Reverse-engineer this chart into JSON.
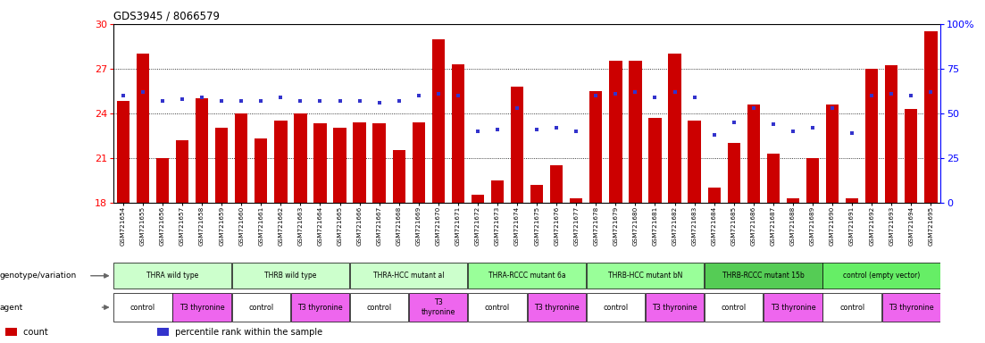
{
  "title": "GDS3945 / 8066579",
  "samples": [
    "GSM721654",
    "GSM721655",
    "GSM721656",
    "GSM721657",
    "GSM721658",
    "GSM721659",
    "GSM721660",
    "GSM721661",
    "GSM721662",
    "GSM721663",
    "GSM721664",
    "GSM721665",
    "GSM721666",
    "GSM721667",
    "GSM721668",
    "GSM721669",
    "GSM721670",
    "GSM721671",
    "GSM721672",
    "GSM721673",
    "GSM721674",
    "GSM721675",
    "GSM721676",
    "GSM721677",
    "GSM721678",
    "GSM721679",
    "GSM721680",
    "GSM721681",
    "GSM721682",
    "GSM721683",
    "GSM721684",
    "GSM721685",
    "GSM721686",
    "GSM721687",
    "GSM721688",
    "GSM721689",
    "GSM721690",
    "GSM721691",
    "GSM721692",
    "GSM721693",
    "GSM721694",
    "GSM721695"
  ],
  "bar_values": [
    24.8,
    28.0,
    21.0,
    22.2,
    25.0,
    23.0,
    24.0,
    22.3,
    23.5,
    24.0,
    23.3,
    23.0,
    23.4,
    23.3,
    21.5,
    23.4,
    29.0,
    27.3,
    18.5,
    19.5,
    25.8,
    19.2,
    20.5,
    18.3,
    25.5,
    27.5,
    27.5,
    23.7,
    28.0,
    23.5,
    19.0,
    22.0,
    24.6,
    21.3,
    18.3,
    21.0,
    24.6,
    18.3,
    27.0,
    27.2,
    24.3,
    29.5
  ],
  "percentile_pct": [
    60,
    62,
    57,
    58,
    59,
    57,
    57,
    57,
    59,
    57,
    57,
    57,
    57,
    56,
    57,
    60,
    61,
    60,
    40,
    41,
    53,
    41,
    42,
    40,
    60,
    61,
    62,
    59,
    62,
    59,
    38,
    45,
    53,
    44,
    40,
    42,
    53,
    39,
    60,
    61,
    60,
    62
  ],
  "ylim_left": [
    18,
    30
  ],
  "ylim_right": [
    0,
    100
  ],
  "yticks_left": [
    18,
    21,
    24,
    27,
    30
  ],
  "yticks_right": [
    0,
    25,
    50,
    75,
    100
  ],
  "ytick_labels_right": [
    "0",
    "25",
    "50",
    "75",
    "100%"
  ],
  "bar_color": "#cc0000",
  "percentile_color": "#3333cc",
  "bg_color": "#ffffff",
  "genotype_groups": [
    {
      "label": "THRA wild type",
      "start": 0,
      "end": 6,
      "color": "#ccffcc"
    },
    {
      "label": "THRB wild type",
      "start": 6,
      "end": 12,
      "color": "#ccffcc"
    },
    {
      "label": "THRA-HCC mutant al",
      "start": 12,
      "end": 18,
      "color": "#ccffcc"
    },
    {
      "label": "THRA-RCCC mutant 6a",
      "start": 18,
      "end": 24,
      "color": "#99ff99"
    },
    {
      "label": "THRB-HCC mutant bN",
      "start": 24,
      "end": 30,
      "color": "#99ff99"
    },
    {
      "label": "THRB-RCCC mutant 15b",
      "start": 30,
      "end": 36,
      "color": "#55cc55"
    },
    {
      "label": "control (empty vector)",
      "start": 36,
      "end": 42,
      "color": "#66ee66"
    }
  ],
  "agent_groups": [
    {
      "label": "control",
      "start": 0,
      "end": 3,
      "color": "#ffffff"
    },
    {
      "label": "T3 thyronine",
      "start": 3,
      "end": 6,
      "color": "#ee66ee"
    },
    {
      "label": "control",
      "start": 6,
      "end": 9,
      "color": "#ffffff"
    },
    {
      "label": "T3 thyronine",
      "start": 9,
      "end": 12,
      "color": "#ee66ee"
    },
    {
      "label": "control",
      "start": 12,
      "end": 15,
      "color": "#ffffff"
    },
    {
      "label": "T3\nthyronine",
      "start": 15,
      "end": 18,
      "color": "#ee66ee"
    },
    {
      "label": "control",
      "start": 18,
      "end": 21,
      "color": "#ffffff"
    },
    {
      "label": "T3 thyronine",
      "start": 21,
      "end": 24,
      "color": "#ee66ee"
    },
    {
      "label": "control",
      "start": 24,
      "end": 27,
      "color": "#ffffff"
    },
    {
      "label": "T3 thyronine",
      "start": 27,
      "end": 30,
      "color": "#ee66ee"
    },
    {
      "label": "control",
      "start": 30,
      "end": 33,
      "color": "#ffffff"
    },
    {
      "label": "T3 thyronine",
      "start": 33,
      "end": 36,
      "color": "#ee66ee"
    },
    {
      "label": "control",
      "start": 36,
      "end": 39,
      "color": "#ffffff"
    },
    {
      "label": "T3 thyronine",
      "start": 39,
      "end": 42,
      "color": "#ee66ee"
    }
  ],
  "legend_items": [
    {
      "label": " count",
      "color": "#cc0000"
    },
    {
      "label": " percentile rank within the sample",
      "color": "#3333cc"
    }
  ]
}
